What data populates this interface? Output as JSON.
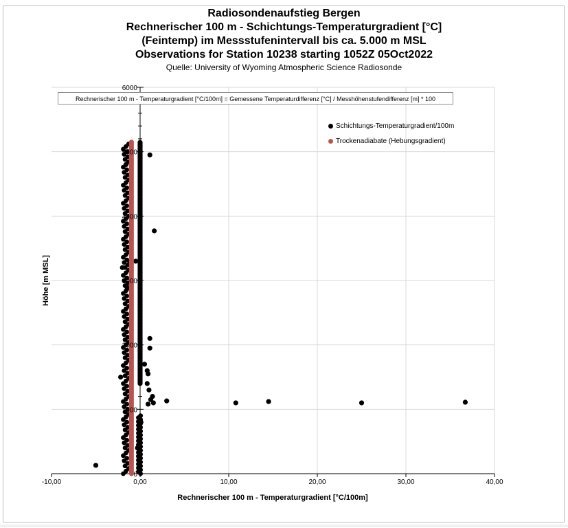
{
  "colors": {
    "series_points": "#000000",
    "series_adiabat": "#b85450",
    "gridline": "#d9d9d9",
    "axis": "#000000"
  },
  "chart_data": {
    "type": "scatter",
    "title_lines": [
      "Radiosondenaufstieg Bergen",
      "Rechnerischer 100 m - Schichtungs-Temperaturgradient [°C]",
      "(Feintemp) im Messstufenintervall  bis ca. 5.000 m MSL",
      "Observations for Station 10238 starting 1052Z 05Oct2022"
    ],
    "subtitle": "Quelle: University of Wyoming Atmospheric Science Radiosonde",
    "annotation": "Rechnerischer 100 m - Temperaturgradient [°C/100m] = Gemessene Temperaturdifferenz [°C] / Messhöhenstufendifferenz [m] * 100",
    "xlabel": "Rechnerischer 100 m - Temperaturgradient [°C/100m]",
    "ylabel": "Höhe [m MSL]",
    "xlim": [
      -10,
      40
    ],
    "ylim": [
      0,
      6000
    ],
    "x_ticks": [
      "-10,00",
      "0,00",
      "10,00",
      "20,00",
      "30,00",
      "40,00"
    ],
    "y_ticks": [
      "0",
      "1000",
      "2000",
      "3000",
      "4000",
      "5000",
      "6000"
    ],
    "grid": true,
    "legend_position": "top-right",
    "series": [
      {
        "name": "Schichtungs-Temperaturgradient/100m",
        "points": [
          [
            -5.0,
            130
          ],
          [
            -2.2,
            1500
          ],
          [
            -2.0,
            3200
          ],
          [
            -1.6,
            4800
          ],
          [
            -1.5,
            2900
          ],
          [
            -1.4,
            5000
          ],
          [
            -1.2,
            3300
          ],
          [
            -1.0,
            4000
          ],
          [
            -0.5,
            3300
          ],
          [
            -0.3,
            400
          ],
          [
            1.1,
            4950
          ],
          [
            1.6,
            3770
          ],
          [
            1.1,
            2100
          ],
          [
            1.1,
            1950
          ],
          [
            0.8,
            1600
          ],
          [
            0.9,
            1550
          ],
          [
            0.5,
            1700
          ],
          [
            0.8,
            1400
          ],
          [
            1.0,
            1300
          ],
          [
            1.2,
            1150
          ],
          [
            1.4,
            1200
          ],
          [
            1.5,
            1100
          ],
          [
            0.9,
            1080
          ],
          [
            3.0,
            1130
          ],
          [
            10.8,
            1100
          ],
          [
            14.5,
            1120
          ],
          [
            25.0,
            1100
          ],
          [
            36.7,
            1110
          ],
          [
            0.1,
            800
          ]
        ],
        "column_main": {
          "x": 0.0,
          "y_from": 1400,
          "y_to": 5150
        },
        "column_left": {
          "x": -1.6,
          "y_from": 0,
          "y_to": 5150
        }
      },
      {
        "name": "Trockenadiabate (Hebungsgradient)",
        "x": -0.98,
        "y_from": 0,
        "y_to": 5150
      }
    ]
  }
}
